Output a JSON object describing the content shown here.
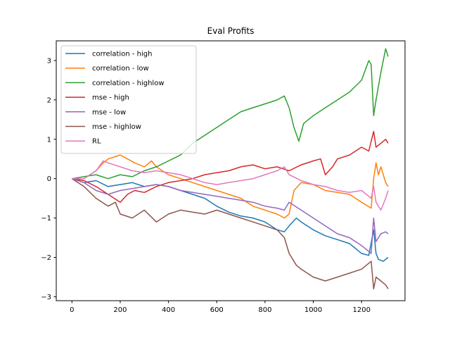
{
  "chart_data": {
    "type": "line",
    "title": "Eval Profits",
    "xlabel": "",
    "ylabel": "",
    "xlim": [
      -65,
      1380
    ],
    "ylim": [
      -3.1,
      3.5
    ],
    "xticks": [
      0,
      200,
      400,
      600,
      800,
      1000,
      1200
    ],
    "yticks": [
      -3,
      -2,
      -1,
      0,
      1,
      2,
      3
    ],
    "grid": false,
    "legend_position": "top-left",
    "series": [
      {
        "name": "correlation - high",
        "color": "#1f77b4",
        "points": [
          [
            0,
            0
          ],
          [
            50,
            -0.1
          ],
          [
            100,
            -0.05
          ],
          [
            150,
            -0.2
          ],
          [
            200,
            -0.15
          ],
          [
            250,
            -0.1
          ],
          [
            300,
            -0.2
          ],
          [
            350,
            -0.15
          ],
          [
            400,
            -0.2
          ],
          [
            450,
            -0.3
          ],
          [
            500,
            -0.4
          ],
          [
            550,
            -0.5
          ],
          [
            600,
            -0.7
          ],
          [
            650,
            -0.85
          ],
          [
            700,
            -0.95
          ],
          [
            750,
            -1.0
          ],
          [
            800,
            -1.1
          ],
          [
            850,
            -1.3
          ],
          [
            880,
            -1.35
          ],
          [
            900,
            -1.2
          ],
          [
            930,
            -1.0
          ],
          [
            950,
            -1.1
          ],
          [
            1000,
            -1.3
          ],
          [
            1050,
            -1.45
          ],
          [
            1100,
            -1.55
          ],
          [
            1150,
            -1.65
          ],
          [
            1200,
            -1.9
          ],
          [
            1230,
            -1.95
          ],
          [
            1250,
            -1.3
          ],
          [
            1260,
            -1.9
          ],
          [
            1270,
            -2.05
          ],
          [
            1290,
            -2.1
          ],
          [
            1310,
            -2.0
          ]
        ]
      },
      {
        "name": "correlation - low",
        "color": "#ff7f0e",
        "points": [
          [
            0,
            0
          ],
          [
            50,
            0.0
          ],
          [
            100,
            0.2
          ],
          [
            130,
            0.4
          ],
          [
            150,
            0.5
          ],
          [
            200,
            0.6
          ],
          [
            230,
            0.5
          ],
          [
            260,
            0.4
          ],
          [
            300,
            0.3
          ],
          [
            330,
            0.45
          ],
          [
            350,
            0.3
          ],
          [
            400,
            0.1
          ],
          [
            450,
            0.0
          ],
          [
            500,
            -0.1
          ],
          [
            550,
            -0.2
          ],
          [
            600,
            -0.3
          ],
          [
            650,
            -0.4
          ],
          [
            700,
            -0.5
          ],
          [
            750,
            -0.7
          ],
          [
            800,
            -0.8
          ],
          [
            850,
            -0.9
          ],
          [
            880,
            -1.0
          ],
          [
            900,
            -0.9
          ],
          [
            920,
            -0.3
          ],
          [
            950,
            -0.1
          ],
          [
            1000,
            -0.15
          ],
          [
            1050,
            -0.3
          ],
          [
            1100,
            -0.35
          ],
          [
            1150,
            -0.4
          ],
          [
            1200,
            -0.6
          ],
          [
            1240,
            -0.75
          ],
          [
            1250,
            0.0
          ],
          [
            1260,
            0.4
          ],
          [
            1270,
            0.1
          ],
          [
            1280,
            0.3
          ],
          [
            1300,
            -0.1
          ],
          [
            1310,
            -0.2
          ]
        ]
      },
      {
        "name": "correlation - highlow",
        "color": "#2ca02c",
        "points": [
          [
            0,
            0
          ],
          [
            50,
            0.05
          ],
          [
            100,
            0.1
          ],
          [
            150,
            0.0
          ],
          [
            200,
            0.1
          ],
          [
            250,
            0.05
          ],
          [
            300,
            0.2
          ],
          [
            350,
            0.3
          ],
          [
            400,
            0.45
          ],
          [
            450,
            0.6
          ],
          [
            500,
            0.9
          ],
          [
            550,
            1.1
          ],
          [
            600,
            1.3
          ],
          [
            650,
            1.5
          ],
          [
            700,
            1.7
          ],
          [
            750,
            1.8
          ],
          [
            800,
            1.9
          ],
          [
            850,
            2.0
          ],
          [
            880,
            2.1
          ],
          [
            900,
            1.8
          ],
          [
            920,
            1.3
          ],
          [
            940,
            0.95
          ],
          [
            960,
            1.4
          ],
          [
            1000,
            1.6
          ],
          [
            1050,
            1.8
          ],
          [
            1100,
            2.0
          ],
          [
            1150,
            2.2
          ],
          [
            1200,
            2.5
          ],
          [
            1230,
            3.0
          ],
          [
            1240,
            2.9
          ],
          [
            1250,
            1.6
          ],
          [
            1260,
            2.0
          ],
          [
            1280,
            2.7
          ],
          [
            1300,
            3.3
          ],
          [
            1310,
            3.1
          ]
        ]
      },
      {
        "name": "mse - high",
        "color": "#d62728",
        "points": [
          [
            0,
            0
          ],
          [
            50,
            -0.05
          ],
          [
            100,
            -0.2
          ],
          [
            150,
            -0.4
          ],
          [
            200,
            -0.6
          ],
          [
            230,
            -0.4
          ],
          [
            260,
            -0.3
          ],
          [
            300,
            -0.35
          ],
          [
            350,
            -0.2
          ],
          [
            400,
            -0.1
          ],
          [
            450,
            -0.05
          ],
          [
            500,
            0.0
          ],
          [
            550,
            0.1
          ],
          [
            600,
            0.15
          ],
          [
            650,
            0.2
          ],
          [
            700,
            0.3
          ],
          [
            750,
            0.35
          ],
          [
            800,
            0.25
          ],
          [
            850,
            0.3
          ],
          [
            900,
            0.2
          ],
          [
            950,
            0.35
          ],
          [
            1000,
            0.45
          ],
          [
            1030,
            0.5
          ],
          [
            1050,
            0.1
          ],
          [
            1080,
            0.3
          ],
          [
            1100,
            0.5
          ],
          [
            1150,
            0.6
          ],
          [
            1200,
            0.8
          ],
          [
            1230,
            0.7
          ],
          [
            1250,
            1.2
          ],
          [
            1260,
            0.8
          ],
          [
            1280,
            0.9
          ],
          [
            1300,
            1.0
          ],
          [
            1310,
            0.9
          ]
        ]
      },
      {
        "name": "mse - low",
        "color": "#9467bd",
        "points": [
          [
            0,
            0
          ],
          [
            50,
            -0.1
          ],
          [
            100,
            -0.3
          ],
          [
            150,
            -0.4
          ],
          [
            200,
            -0.3
          ],
          [
            250,
            -0.25
          ],
          [
            300,
            -0.2
          ],
          [
            350,
            -0.15
          ],
          [
            400,
            -0.2
          ],
          [
            450,
            -0.3
          ],
          [
            500,
            -0.35
          ],
          [
            550,
            -0.4
          ],
          [
            600,
            -0.45
          ],
          [
            650,
            -0.5
          ],
          [
            700,
            -0.55
          ],
          [
            750,
            -0.6
          ],
          [
            800,
            -0.7
          ],
          [
            850,
            -0.75
          ],
          [
            880,
            -0.8
          ],
          [
            900,
            -0.6
          ],
          [
            950,
            -0.8
          ],
          [
            1000,
            -1.0
          ],
          [
            1050,
            -1.2
          ],
          [
            1100,
            -1.4
          ],
          [
            1150,
            -1.5
          ],
          [
            1200,
            -1.7
          ],
          [
            1240,
            -1.9
          ],
          [
            1250,
            -1.0
          ],
          [
            1260,
            -1.6
          ],
          [
            1280,
            -1.4
          ],
          [
            1300,
            -1.35
          ],
          [
            1310,
            -1.4
          ]
        ]
      },
      {
        "name": "mse - highlow",
        "color": "#8c564b",
        "points": [
          [
            0,
            0
          ],
          [
            50,
            -0.2
          ],
          [
            100,
            -0.5
          ],
          [
            150,
            -0.7
          ],
          [
            180,
            -0.6
          ],
          [
            200,
            -0.9
          ],
          [
            250,
            -1.0
          ],
          [
            300,
            -0.8
          ],
          [
            350,
            -1.1
          ],
          [
            400,
            -0.9
          ],
          [
            450,
            -0.8
          ],
          [
            500,
            -0.85
          ],
          [
            550,
            -0.9
          ],
          [
            600,
            -0.8
          ],
          [
            650,
            -0.9
          ],
          [
            700,
            -1.0
          ],
          [
            750,
            -1.1
          ],
          [
            800,
            -1.2
          ],
          [
            850,
            -1.3
          ],
          [
            880,
            -1.5
          ],
          [
            900,
            -1.9
          ],
          [
            930,
            -2.2
          ],
          [
            950,
            -2.3
          ],
          [
            1000,
            -2.5
          ],
          [
            1050,
            -2.6
          ],
          [
            1100,
            -2.5
          ],
          [
            1150,
            -2.4
          ],
          [
            1200,
            -2.3
          ],
          [
            1240,
            -2.1
          ],
          [
            1250,
            -2.8
          ],
          [
            1260,
            -2.5
          ],
          [
            1280,
            -2.6
          ],
          [
            1300,
            -2.7
          ],
          [
            1310,
            -2.8
          ]
        ]
      },
      {
        "name": "RL",
        "color": "#e377c2",
        "points": [
          [
            0,
            0
          ],
          [
            50,
            0.0
          ],
          [
            100,
            0.2
          ],
          [
            130,
            0.45
          ],
          [
            150,
            0.4
          ],
          [
            200,
            0.3
          ],
          [
            250,
            0.2
          ],
          [
            300,
            0.15
          ],
          [
            350,
            0.2
          ],
          [
            400,
            0.15
          ],
          [
            450,
            0.1
          ],
          [
            500,
            0.0
          ],
          [
            550,
            -0.1
          ],
          [
            600,
            -0.15
          ],
          [
            650,
            -0.1
          ],
          [
            700,
            -0.05
          ],
          [
            750,
            0.0
          ],
          [
            800,
            0.1
          ],
          [
            850,
            0.2
          ],
          [
            880,
            0.3
          ],
          [
            900,
            0.1
          ],
          [
            950,
            -0.05
          ],
          [
            1000,
            -0.15
          ],
          [
            1050,
            -0.2
          ],
          [
            1100,
            -0.3
          ],
          [
            1150,
            -0.35
          ],
          [
            1200,
            -0.3
          ],
          [
            1240,
            -0.5
          ],
          [
            1250,
            -0.2
          ],
          [
            1260,
            -0.6
          ],
          [
            1280,
            -0.8
          ],
          [
            1300,
            -0.5
          ],
          [
            1310,
            -0.3
          ]
        ]
      }
    ]
  }
}
